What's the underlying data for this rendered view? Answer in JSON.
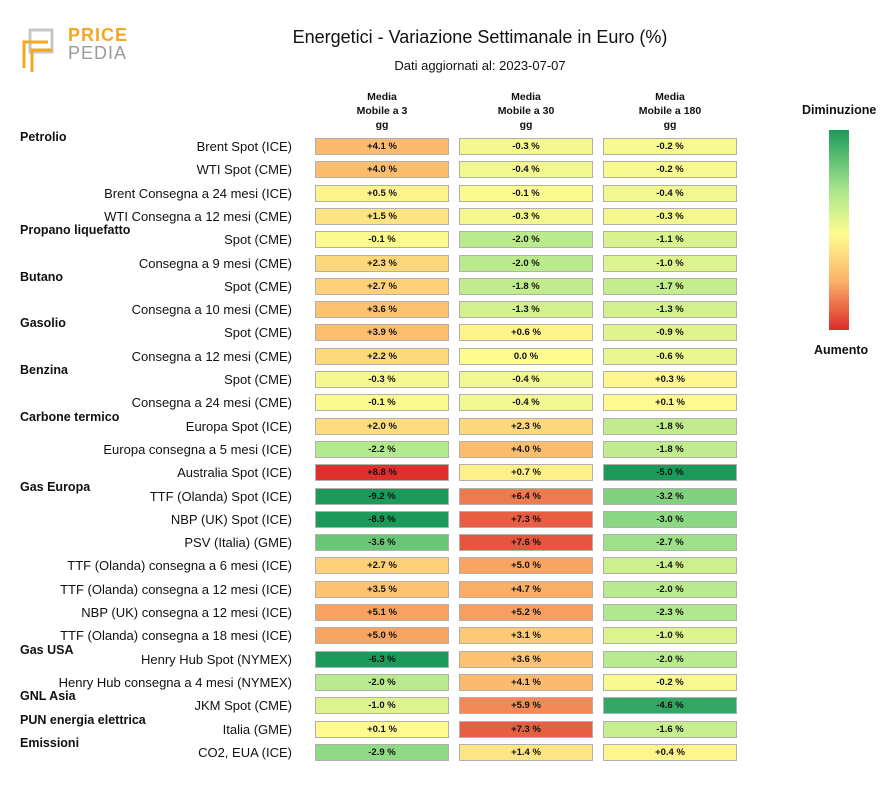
{
  "header": {
    "title": "Energetici - Variazione Settimanale in Euro (%)",
    "subtitle": "Dati aggiornati al: 2023-07-07",
    "logo_text_1": "PRICE",
    "logo_text_2": "PEDIA"
  },
  "legend": {
    "top": "Diminuzione",
    "bottom": "Aumento"
  },
  "chart_data": {
    "type": "table",
    "title": "Energetici - Variazione Settimanale in Euro (%)",
    "columns": [
      "Media Mobile a 3 gg",
      "Media Mobile a 30 gg",
      "Media Mobile a 180 gg"
    ],
    "column_display": [
      [
        "Media",
        "Mobile a 3",
        "gg"
      ],
      [
        "Media",
        "Mobile a 30",
        "gg"
      ],
      [
        "Media",
        "Mobile a 180",
        "gg"
      ]
    ],
    "color_scale": {
      "negative": "#1b9a5a",
      "zero": "#fffb8f",
      "positive": "#dd2a2a"
    },
    "rows": [
      {
        "group": "Petrolio",
        "label": "Brent Spot (ICE)",
        "values": [
          4.1,
          -0.3,
          -0.2
        ],
        "text": [
          "+4.1 %",
          "-0.3 %",
          "-0.2 %"
        ]
      },
      {
        "group": "",
        "label": "WTI Spot (CME)",
        "values": [
          4.0,
          -0.4,
          -0.2
        ],
        "text": [
          "+4.0 %",
          "-0.4 %",
          "-0.2 %"
        ]
      },
      {
        "group": "",
        "label": "Brent Consegna a 24 mesi (ICE)",
        "values": [
          0.5,
          -0.1,
          -0.4
        ],
        "text": [
          "+0.5 %",
          "-0.1 %",
          "-0.4 %"
        ]
      },
      {
        "group": "",
        "label": "WTI Consegna a 12 mesi (CME)",
        "values": [
          1.5,
          -0.3,
          -0.3
        ],
        "text": [
          "+1.5 %",
          "-0.3 %",
          "-0.3 %"
        ]
      },
      {
        "group": "Propano liquefatto",
        "label": "Spot (CME)",
        "values": [
          -0.1,
          -2.0,
          -1.1
        ],
        "text": [
          "-0.1 %",
          "-2.0 %",
          "-1.1 %"
        ]
      },
      {
        "group": "",
        "label": "Consegna a 9 mesi (CME)",
        "values": [
          2.3,
          -2.0,
          -1.0
        ],
        "text": [
          "+2.3 %",
          "-2.0 %",
          "-1.0 %"
        ]
      },
      {
        "group": "Butano",
        "label": "Spot (CME)",
        "values": [
          2.7,
          -1.8,
          -1.7
        ],
        "text": [
          "+2.7 %",
          "-1.8 %",
          "-1.7 %"
        ]
      },
      {
        "group": "",
        "label": "Consegna a 10 mesi (CME)",
        "values": [
          3.6,
          -1.3,
          -1.3
        ],
        "text": [
          "+3.6 %",
          "-1.3 %",
          "-1.3 %"
        ]
      },
      {
        "group": "Gasolio",
        "label": "Spot (CME)",
        "values": [
          3.9,
          0.6,
          -0.9
        ],
        "text": [
          "+3.9 %",
          "+0.6 %",
          "-0.9 %"
        ]
      },
      {
        "group": "",
        "label": "Consegna a 12 mesi (CME)",
        "values": [
          2.2,
          0.0,
          -0.6
        ],
        "text": [
          "+2.2 %",
          "0.0 %",
          "-0.6 %"
        ]
      },
      {
        "group": "Benzina",
        "label": "Spot (CME)",
        "values": [
          -0.3,
          -0.4,
          0.3
        ],
        "text": [
          "-0.3 %",
          "-0.4 %",
          "+0.3 %"
        ]
      },
      {
        "group": "",
        "label": "Consegna a 24 mesi (CME)",
        "values": [
          -0.1,
          -0.4,
          0.1
        ],
        "text": [
          "-0.1 %",
          "-0.4 %",
          "+0.1 %"
        ]
      },
      {
        "group": "Carbone termico",
        "label": "Europa Spot (ICE)",
        "values": [
          2.0,
          2.3,
          -1.8
        ],
        "text": [
          "+2.0 %",
          "+2.3 %",
          "-1.8 %"
        ]
      },
      {
        "group": "",
        "label": "Europa consegna a 5 mesi (ICE)",
        "values": [
          -2.2,
          4.0,
          -1.8
        ],
        "text": [
          "-2.2 %",
          "+4.0 %",
          "-1.8 %"
        ]
      },
      {
        "group": "",
        "label": "Australia Spot (ICE)",
        "values": [
          8.8,
          0.7,
          -5.0
        ],
        "text": [
          "+8.8 %",
          "+0.7 %",
          "-5.0 %"
        ]
      },
      {
        "group": "Gas Europa",
        "label": "TTF (Olanda) Spot (ICE)",
        "values": [
          -9.2,
          6.4,
          -3.2
        ],
        "text": [
          "-9.2 %",
          "+6.4 %",
          "-3.2 %"
        ]
      },
      {
        "group": "",
        "label": "NBP (UK) Spot (ICE)",
        "values": [
          -8.9,
          7.3,
          -3.0
        ],
        "text": [
          "-8.9 %",
          "+7.3 %",
          "-3.0 %"
        ]
      },
      {
        "group": "",
        "label": "PSV (Italia) (GME)",
        "values": [
          -3.6,
          7.6,
          -2.7
        ],
        "text": [
          "-3.6 %",
          "+7.6 %",
          "-2.7 %"
        ]
      },
      {
        "group": "",
        "label": "TTF (Olanda) consegna a 6 mesi (ICE)",
        "values": [
          2.7,
          5.0,
          -1.4
        ],
        "text": [
          "+2.7 %",
          "+5.0 %",
          "-1.4 %"
        ]
      },
      {
        "group": "",
        "label": "TTF (Olanda) consegna a 12 mesi (ICE)",
        "values": [
          3.5,
          4.7,
          -2.0
        ],
        "text": [
          "+3.5 %",
          "+4.7 %",
          "-2.0 %"
        ]
      },
      {
        "group": "",
        "label": "NBP (UK) consegna a 12 mesi (ICE)",
        "values": [
          5.1,
          5.2,
          -2.3
        ],
        "text": [
          "+5.1 %",
          "+5.2 %",
          "-2.3 %"
        ]
      },
      {
        "group": "",
        "label": "TTF (Olanda) consegna a 18 mesi (ICE)",
        "values": [
          5.0,
          3.1,
          -1.0
        ],
        "text": [
          "+5.0 %",
          "+3.1 %",
          "-1.0 %"
        ]
      },
      {
        "group": "Gas USA",
        "label": "Henry Hub Spot (NYMEX)",
        "values": [
          -6.3,
          3.6,
          -2.0
        ],
        "text": [
          "-6.3 %",
          "+3.6 %",
          "-2.0 %"
        ]
      },
      {
        "group": "",
        "label": "Henry Hub consegna a 4 mesi (NYMEX)",
        "values": [
          -2.0,
          4.1,
          -0.2
        ],
        "text": [
          "-2.0 %",
          "+4.1 %",
          "-0.2 %"
        ]
      },
      {
        "group": "GNL Asia",
        "label": "JKM Spot (CME)",
        "values": [
          -1.0,
          5.9,
          -4.6
        ],
        "text": [
          "-1.0 %",
          "+5.9 %",
          "-4.6 %"
        ]
      },
      {
        "group": "PUN energia elettrica",
        "label": "Italia (GME)",
        "values": [
          0.1,
          7.3,
          -1.6
        ],
        "text": [
          "+0.1 %",
          "+7.3 %",
          "-1.6 %"
        ]
      },
      {
        "group": "Emissioni",
        "label": "CO2, EUA (ICE)",
        "values": [
          -2.9,
          1.4,
          0.4
        ],
        "text": [
          "-2.9 %",
          "+1.4 %",
          "+0.4 %"
        ]
      }
    ]
  }
}
